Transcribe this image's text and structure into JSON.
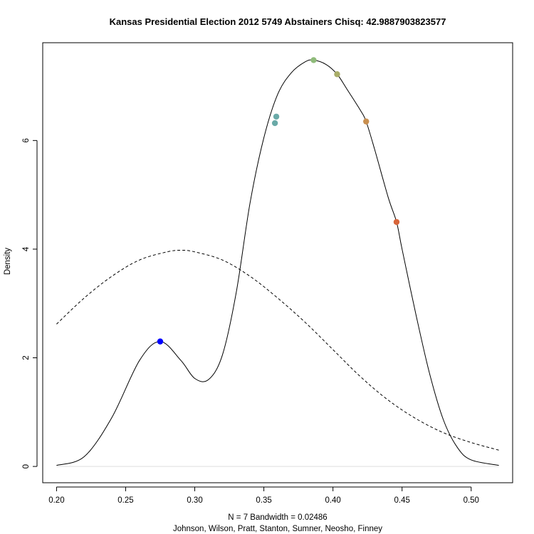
{
  "chart_data": {
    "type": "line",
    "title": "Kansas Presidential Election 2012 5749 Abstainers Chisq: 42.9887903823577",
    "ylabel": "Density",
    "xlabel_line1": "N = 7   Bandwidth = 0.02486",
    "xlabel_line2": "Johnson, Wilson, Pratt, Stanton, Sumner, Neosho, Finney",
    "xlim": [
      0.19,
      0.53
    ],
    "ylim": [
      -0.3,
      7.8
    ],
    "x_ticks": [
      "0.20",
      "0.25",
      "0.30",
      "0.35",
      "0.40",
      "0.45",
      "0.50"
    ],
    "y_ticks": [
      "0",
      "2",
      "4",
      "6"
    ],
    "grid": false,
    "series": [
      {
        "style": "solid",
        "x": [
          0.2,
          0.22,
          0.24,
          0.26,
          0.275,
          0.29,
          0.3,
          0.31,
          0.32,
          0.33,
          0.34,
          0.35,
          0.36,
          0.37,
          0.38,
          0.386,
          0.395,
          0.403,
          0.41,
          0.42,
          0.424,
          0.43,
          0.44,
          0.446,
          0.45,
          0.46,
          0.47,
          0.48,
          0.49,
          0.5,
          0.52
        ],
        "values": [
          0.02,
          0.18,
          0.9,
          1.95,
          2.3,
          1.95,
          1.62,
          1.6,
          2.05,
          3.2,
          4.85,
          6.05,
          6.85,
          7.25,
          7.45,
          7.48,
          7.4,
          7.22,
          6.95,
          6.55,
          6.35,
          5.85,
          4.95,
          4.5,
          4.0,
          2.8,
          1.7,
          0.85,
          0.35,
          0.12,
          0.02
        ]
      },
      {
        "style": "dashed",
        "x": [
          0.2,
          0.22,
          0.24,
          0.26,
          0.28,
          0.29,
          0.3,
          0.32,
          0.34,
          0.36,
          0.38,
          0.4,
          0.42,
          0.44,
          0.46,
          0.48,
          0.5,
          0.52
        ],
        "values": [
          2.62,
          3.1,
          3.5,
          3.8,
          3.95,
          3.98,
          3.95,
          3.8,
          3.5,
          3.1,
          2.65,
          2.15,
          1.65,
          1.22,
          0.88,
          0.62,
          0.44,
          0.3
        ]
      }
    ],
    "points": [
      {
        "x": 0.275,
        "y": 2.3,
        "color": "#0000ff"
      },
      {
        "x": 0.358,
        "y": 6.32,
        "color": "#6aaaa8"
      },
      {
        "x": 0.359,
        "y": 6.44,
        "color": "#6aaaa8"
      },
      {
        "x": 0.386,
        "y": 7.48,
        "color": "#8fbb7a"
      },
      {
        "x": 0.403,
        "y": 7.22,
        "color": "#a9ad68"
      },
      {
        "x": 0.424,
        "y": 6.35,
        "color": "#c98f4f"
      },
      {
        "x": 0.446,
        "y": 4.5,
        "color": "#d8653a"
      }
    ]
  }
}
